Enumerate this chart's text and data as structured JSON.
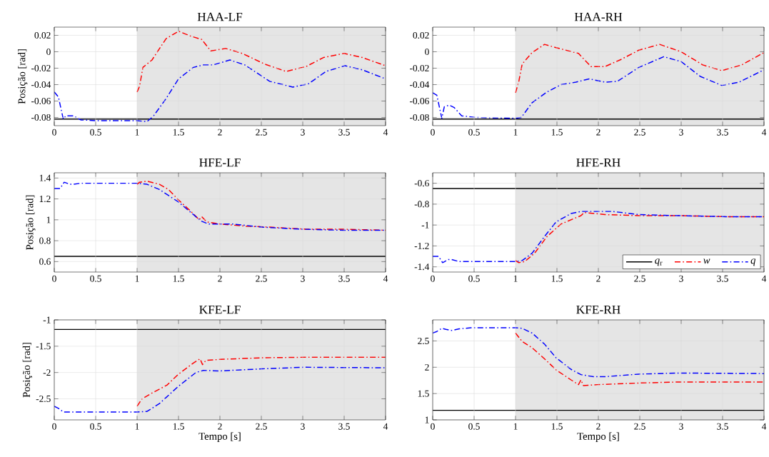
{
  "chart_data": [
    {
      "type": "line",
      "title": "HAA-LF",
      "ylabel": "Posição [rad]",
      "xlim": [
        0,
        4
      ],
      "ylim": [
        -0.09,
        0.03
      ],
      "xticks": [
        0,
        0.5,
        1,
        1.5,
        2,
        2.5,
        3,
        3.5,
        4
      ],
      "yticks": [
        -0.08,
        -0.06,
        -0.04,
        -0.02,
        0,
        0.02
      ],
      "grid": true,
      "bands": [
        {
          "axis": "x",
          "from": 1,
          "to": 4,
          "color": "#e5e5e5"
        }
      ],
      "series": [
        {
          "color": "#000000",
          "line_style": "solid",
          "x": [
            0,
            4
          ],
          "values": [
            -0.082,
            -0.082
          ]
        },
        {
          "color": "#ff0000",
          "line_style": "dashdot",
          "x": [
            1,
            1.03,
            1.07,
            1.18,
            1.35,
            1.5,
            1.65,
            1.78,
            1.89,
            2.07,
            2.27,
            2.54,
            2.8,
            3.04,
            3.25,
            3.5,
            3.72,
            4
          ],
          "values": [
            -0.049,
            -0.042,
            -0.019,
            -0.01,
            0.016,
            0.025,
            0.019,
            0.015,
            0.001,
            0.004,
            -0.002,
            -0.015,
            -0.024,
            -0.018,
            -0.007,
            -0.002,
            -0.007,
            -0.017
          ]
        },
        {
          "color": "#0000ff",
          "line_style": "dashdot",
          "x": [
            0,
            0.05,
            0.1,
            0.11,
            0.14,
            0.23,
            0.32,
            0.53,
            1,
            1.12,
            1.2,
            1.35,
            1.5,
            1.68,
            1.8,
            1.92,
            2.12,
            2.3,
            2.6,
            2.88,
            3.07,
            3.28,
            3.51,
            3.72,
            4
          ],
          "values": [
            -0.049,
            -0.055,
            -0.078,
            -0.082,
            -0.078,
            -0.078,
            -0.083,
            -0.084,
            -0.084,
            -0.085,
            -0.078,
            -0.057,
            -0.033,
            -0.019,
            -0.016,
            -0.016,
            -0.01,
            -0.016,
            -0.036,
            -0.043,
            -0.039,
            -0.024,
            -0.017,
            -0.022,
            -0.033
          ]
        }
      ]
    },
    {
      "type": "line",
      "title": "HAA-RH",
      "xlim": [
        0,
        4
      ],
      "ylim": [
        -0.09,
        0.03
      ],
      "xticks": [
        0,
        0.5,
        1,
        1.5,
        2,
        2.5,
        3,
        3.5,
        4
      ],
      "yticks": [
        -0.08,
        -0.06,
        -0.04,
        -0.02,
        0,
        0.02
      ],
      "grid": true,
      "bands": [
        {
          "axis": "x",
          "from": 1,
          "to": 4,
          "color": "#e5e5e5"
        }
      ],
      "series": [
        {
          "color": "#000000",
          "line_style": "solid",
          "x": [
            0,
            4
          ],
          "values": [
            -0.082,
            -0.082
          ]
        },
        {
          "color": "#ff0000",
          "line_style": "dashdot",
          "x": [
            1,
            1.04,
            1.08,
            1.2,
            1.35,
            1.49,
            1.76,
            1.91,
            2.08,
            2.26,
            2.49,
            2.74,
            3.0,
            3.26,
            3.49,
            3.73,
            4
          ],
          "values": [
            -0.05,
            -0.036,
            -0.015,
            -0.001,
            0.009,
            0.005,
            -0.002,
            -0.018,
            -0.018,
            -0.01,
            0.002,
            0.009,
            0.0,
            -0.016,
            -0.023,
            -0.016,
            -0.001
          ]
        },
        {
          "color": "#0000ff",
          "line_style": "dashdot",
          "x": [
            0,
            0.05,
            0.11,
            0.14,
            0.2,
            0.26,
            0.35,
            0.52,
            1,
            1.07,
            1.2,
            1.38,
            1.55,
            1.73,
            1.89,
            2.08,
            2.23,
            2.49,
            2.79,
            3.0,
            3.23,
            3.49,
            3.7,
            4
          ],
          "values": [
            -0.05,
            -0.053,
            -0.081,
            -0.067,
            -0.065,
            -0.068,
            -0.078,
            -0.08,
            -0.081,
            -0.08,
            -0.062,
            -0.049,
            -0.04,
            -0.037,
            -0.033,
            -0.037,
            -0.036,
            -0.019,
            -0.006,
            -0.012,
            -0.03,
            -0.041,
            -0.037,
            -0.022
          ]
        }
      ]
    },
    {
      "type": "line",
      "title": "HFE-LF",
      "ylabel": "Posição [rad]",
      "xlim": [
        0,
        4
      ],
      "ylim": [
        0.5,
        1.45
      ],
      "xticks": [
        0,
        0.5,
        1,
        1.5,
        2,
        2.5,
        3,
        3.5,
        4
      ],
      "yticks": [
        0.6,
        0.8,
        1,
        1.2,
        1.4
      ],
      "grid": true,
      "bands": [
        {
          "axis": "x",
          "from": 1,
          "to": 4,
          "color": "#e5e5e5"
        }
      ],
      "series": [
        {
          "color": "#000000",
          "line_style": "solid",
          "x": [
            0,
            4
          ],
          "values": [
            0.65,
            0.65
          ]
        },
        {
          "color": "#ff0000",
          "line_style": "dashdot",
          "x": [
            1,
            1.03,
            1.12,
            1.27,
            1.38,
            1.5,
            1.65,
            1.75,
            1.78,
            1.84,
            2.0,
            2.3,
            2.6,
            3.04,
            3.49,
            4
          ],
          "values": [
            1.34,
            1.36,
            1.37,
            1.34,
            1.29,
            1.19,
            1.08,
            1.0,
            1.03,
            0.98,
            0.96,
            0.94,
            0.93,
            0.91,
            0.91,
            0.9
          ]
        },
        {
          "color": "#0000ff",
          "line_style": "dashdot",
          "x": [
            0,
            0.07,
            0.12,
            0.19,
            0.23,
            0.32,
            0.53,
            1,
            1.12,
            1.27,
            1.5,
            1.77,
            1.86,
            2.15,
            2.51,
            2.98,
            3.49,
            4
          ],
          "values": [
            1.3,
            1.3,
            1.36,
            1.34,
            1.34,
            1.35,
            1.35,
            1.35,
            1.34,
            1.29,
            1.17,
            0.99,
            0.96,
            0.96,
            0.93,
            0.91,
            0.9,
            0.9
          ]
        }
      ]
    },
    {
      "type": "line",
      "title": "HFE-RH",
      "xlim": [
        0,
        4
      ],
      "ylim": [
        -1.45,
        -0.5
      ],
      "xticks": [
        0,
        0.5,
        1,
        1.5,
        2,
        2.5,
        3,
        3.5,
        4
      ],
      "yticks": [
        -1.4,
        -1.2,
        -1,
        -0.8,
        -0.6
      ],
      "grid": true,
      "legend": "bottom right",
      "bands": [
        {
          "axis": "x",
          "from": 1,
          "to": 4,
          "color": "#e5e5e5"
        }
      ],
      "series": [
        {
          "name": "*q*$_{r}$",
          "color": "#000000",
          "line_style": "solid",
          "x": [
            0,
            4
          ],
          "values": [
            -0.65,
            -0.65
          ]
        },
        {
          "name": "*w*",
          "color": "#ff0000",
          "line_style": "dashdot",
          "x": [
            1,
            1.04,
            1.11,
            1.23,
            1.38,
            1.55,
            1.73,
            1.79,
            1.83,
            2.08,
            2.49,
            2.96,
            3.55,
            4
          ],
          "values": [
            -1.34,
            -1.36,
            -1.35,
            -1.27,
            -1.11,
            -0.99,
            -0.93,
            -0.91,
            -0.88,
            -0.9,
            -0.91,
            -0.91,
            -0.92,
            -0.92
          ]
        },
        {
          "name": "*q*",
          "color": "#0000ff",
          "line_style": "dashdot",
          "x": [
            0,
            0.07,
            0.12,
            0.19,
            0.23,
            0.32,
            0.52,
            1,
            1.08,
            1.2,
            1.35,
            1.49,
            1.67,
            1.79,
            1.99,
            2.17,
            2.49,
            2.96,
            3.55,
            4
          ],
          "values": [
            -1.3,
            -1.3,
            -1.36,
            -1.33,
            -1.33,
            -1.35,
            -1.35,
            -1.35,
            -1.34,
            -1.27,
            -1.11,
            -0.97,
            -0.89,
            -0.87,
            -0.87,
            -0.87,
            -0.9,
            -0.91,
            -0.92,
            -0.92
          ]
        }
      ]
    },
    {
      "type": "line",
      "title": "KFE-LF",
      "ylabel": "Posição [rad]",
      "xlabel": "Tempo [s]",
      "xlim": [
        0,
        4
      ],
      "ylim": [
        -2.9,
        -1
      ],
      "xticks": [
        0,
        0.5,
        1,
        1.5,
        2,
        2.5,
        3,
        3.5,
        4
      ],
      "yticks": [
        -2.5,
        -2,
        -1.5,
        -1
      ],
      "grid": true,
      "bands": [
        {
          "axis": "x",
          "from": 1,
          "to": 4,
          "color": "#e5e5e5"
        }
      ],
      "series": [
        {
          "color": "#000000",
          "line_style": "solid",
          "x": [
            0,
            4
          ],
          "values": [
            -1.18,
            -1.18
          ]
        },
        {
          "color": "#ff0000",
          "line_style": "dashdot",
          "x": [
            1,
            1.06,
            1.18,
            1.36,
            1.5,
            1.68,
            1.76,
            1.79,
            1.83,
            2.0,
            2.51,
            3.01,
            4
          ],
          "values": [
            -2.64,
            -2.5,
            -2.39,
            -2.24,
            -2.03,
            -1.82,
            -1.74,
            -1.85,
            -1.77,
            -1.75,
            -1.72,
            -1.71,
            -1.71
          ]
        },
        {
          "color": "#0000ff",
          "line_style": "dashdot",
          "x": [
            0,
            0.05,
            0.11,
            0.23,
            1,
            1.12,
            1.27,
            1.5,
            1.71,
            1.8,
            2.0,
            2.51,
            3.01,
            4
          ],
          "values": [
            -2.64,
            -2.68,
            -2.75,
            -2.75,
            -2.75,
            -2.74,
            -2.59,
            -2.26,
            -2.0,
            -1.96,
            -1.97,
            -1.93,
            -1.9,
            -1.91
          ]
        }
      ]
    },
    {
      "type": "line",
      "title": "KFE-RH",
      "xlabel": "Tempo [s]",
      "xlim": [
        0,
        4
      ],
      "ylim": [
        1,
        2.9
      ],
      "xticks": [
        0,
        0.5,
        1,
        1.5,
        2,
        2.5,
        3,
        3.5,
        4
      ],
      "yticks": [
        1,
        1.5,
        2,
        2.5
      ],
      "grid": true,
      "bands": [
        {
          "axis": "x",
          "from": 1,
          "to": 4,
          "color": "#e5e5e5"
        }
      ],
      "series": [
        {
          "color": "#000000",
          "line_style": "solid",
          "x": [
            0,
            4
          ],
          "values": [
            1.18,
            1.18
          ]
        },
        {
          "color": "#ff0000",
          "line_style": "dashdot",
          "x": [
            1,
            1.08,
            1.2,
            1.35,
            1.49,
            1.67,
            1.76,
            1.79,
            1.82,
            1.99,
            2.49,
            2.96,
            4
          ],
          "values": [
            2.65,
            2.49,
            2.37,
            2.16,
            1.95,
            1.76,
            1.67,
            1.76,
            1.65,
            1.67,
            1.7,
            1.72,
            1.72
          ]
        },
        {
          "color": "#0000ff",
          "line_style": "dashdot",
          "x": [
            0,
            0.05,
            0.11,
            0.16,
            0.23,
            0.32,
            0.46,
            1,
            1.08,
            1.2,
            1.35,
            1.49,
            1.67,
            1.79,
            1.94,
            2.08,
            2.49,
            2.96,
            4
          ],
          "values": [
            2.65,
            2.68,
            2.74,
            2.72,
            2.7,
            2.73,
            2.75,
            2.75,
            2.74,
            2.65,
            2.44,
            2.18,
            1.96,
            1.86,
            1.82,
            1.82,
            1.87,
            1.89,
            1.88
          ]
        }
      ]
    }
  ]
}
